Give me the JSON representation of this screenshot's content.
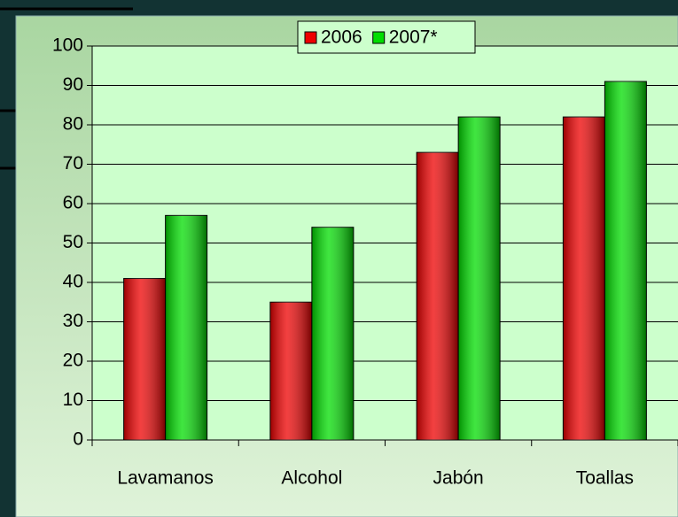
{
  "chart_data": {
    "type": "bar",
    "categories": [
      "Lavamanos",
      "Alcohol",
      "Jabón",
      "Toallas"
    ],
    "series": [
      {
        "name": "2006",
        "color": "#ee0000",
        "values": [
          41,
          35,
          73,
          82
        ]
      },
      {
        "name": "2007*",
        "color": "#00dd00",
        "values": [
          57,
          54,
          82,
          91
        ]
      }
    ],
    "ylim": [
      0,
      100
    ],
    "yticks": [
      0,
      10,
      20,
      30,
      40,
      50,
      60,
      70,
      80,
      90,
      100
    ],
    "grid": true,
    "legend": "top"
  }
}
